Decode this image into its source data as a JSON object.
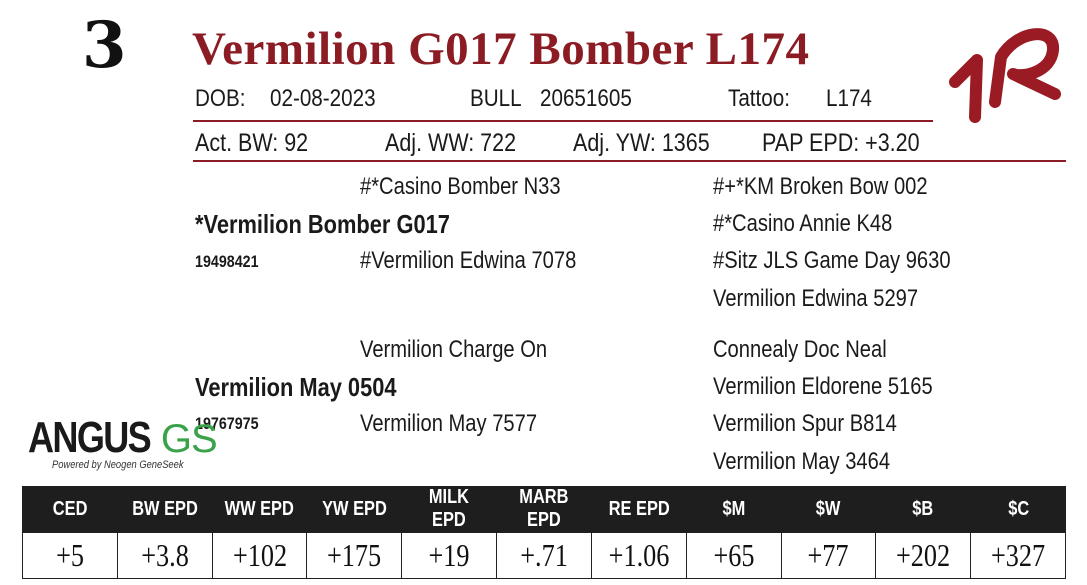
{
  "lot_number": "3",
  "animal_name": "Vermilion G017 Bomber L174",
  "info_row": {
    "dob_label": "DOB:",
    "dob": "02-08-2023",
    "sex": "BULL",
    "registration": "20651605",
    "tattoo_label": "Tattoo:",
    "tattoo": "L174"
  },
  "performance": {
    "act_bw": "Act. BW: 92",
    "adj_ww": "Adj. WW: 722",
    "adj_yw": "Adj. YW: 1365",
    "pap_epd": "PAP EPD: +3.20"
  },
  "pedigree": {
    "sire": "*Vermilion Bomber G017",
    "sire_reg": "19498421",
    "sire_sire": "#*Casino Bomber N33",
    "sire_dam": "#Vermilion Edwina 7078",
    "sire_sire_sire": "#+*KM Broken Bow 002",
    "sire_sire_dam": "#*Casino Annie K48",
    "sire_dam_sire": "#Sitz JLS Game Day 9630",
    "sire_dam_dam": "Vermilion Edwina 5297",
    "dam": "Vermilion May 0504",
    "dam_reg": "19767975",
    "dam_sire": "Vermilion Charge On",
    "dam_dam": "Vermilion May 7577",
    "dam_sire_sire": "Connealy Doc Neal",
    "dam_sire_dam": "Vermilion Eldorene 5165",
    "dam_dam_sire": "Vermilion Spur B814",
    "dam_dam_dam": "Vermilion May 3464"
  },
  "logo": {
    "text_main": "ANGUS",
    "text_accent": "GS",
    "tagline": "Powered by Neogen GeneSeek",
    "accent_color": "#3aa24a"
  },
  "brand_mark": "1R",
  "colors": {
    "brand_red": "#8b1c24",
    "header_dark": "#1e1e1e"
  },
  "epd": {
    "headers": [
      "CED",
      "BW EPD",
      "WW EPD",
      "YW EPD",
      "MILK EPD",
      "MARB EPD",
      "RE EPD",
      "$M",
      "$W",
      "$B",
      "$C"
    ],
    "values": [
      "+5",
      "+3.8",
      "+102",
      "+175",
      "+19",
      "+.71",
      "+1.06",
      "+65",
      "+77",
      "+202",
      "+327"
    ]
  }
}
